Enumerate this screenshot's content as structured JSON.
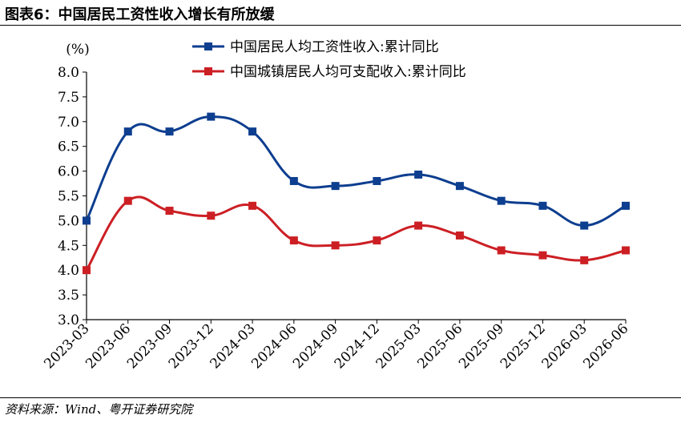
{
  "figure": {
    "title": "图表6：中国居民工资性收入增长有所放缓",
    "source": "资料来源：Wind、粤开证券研究院"
  },
  "colors": {
    "series1": "#0d3e8f",
    "series2": "#cc1f24",
    "axis": "#000000"
  },
  "chart_data": {
    "type": "line",
    "title": "",
    "ylabel": "(%)",
    "xlabel": "",
    "ylim": [
      3.0,
      8.0
    ],
    "yticks": [
      "3.0",
      "3.5",
      "4.0",
      "4.5",
      "5.0",
      "5.5",
      "6.0",
      "6.5",
      "7.0",
      "7.5",
      "8.0"
    ],
    "categories": [
      "2023-03",
      "2023-06",
      "2023-09",
      "2023-12",
      "2024-03",
      "2024-06",
      "2024-09",
      "2024-12",
      "2025-03",
      "2025-06",
      "2025-09",
      "2025-12",
      "2026-03",
      "2026-06"
    ],
    "legend_position": "top",
    "grid": false,
    "series": [
      {
        "name": "中国居民人均工资性收入:累计同比",
        "values": [
          5.0,
          6.8,
          6.8,
          7.1,
          6.8,
          5.8,
          5.7,
          5.8,
          5.93,
          5.7,
          5.4,
          5.3,
          4.9,
          5.3
        ]
      },
      {
        "name": "中国城镇居民人均可支配收入:累计同比",
        "values": [
          4.0,
          5.4,
          5.2,
          5.1,
          5.3,
          4.6,
          4.5,
          4.6,
          4.9,
          4.7,
          4.4,
          4.3,
          4.2,
          4.4
        ]
      }
    ]
  }
}
